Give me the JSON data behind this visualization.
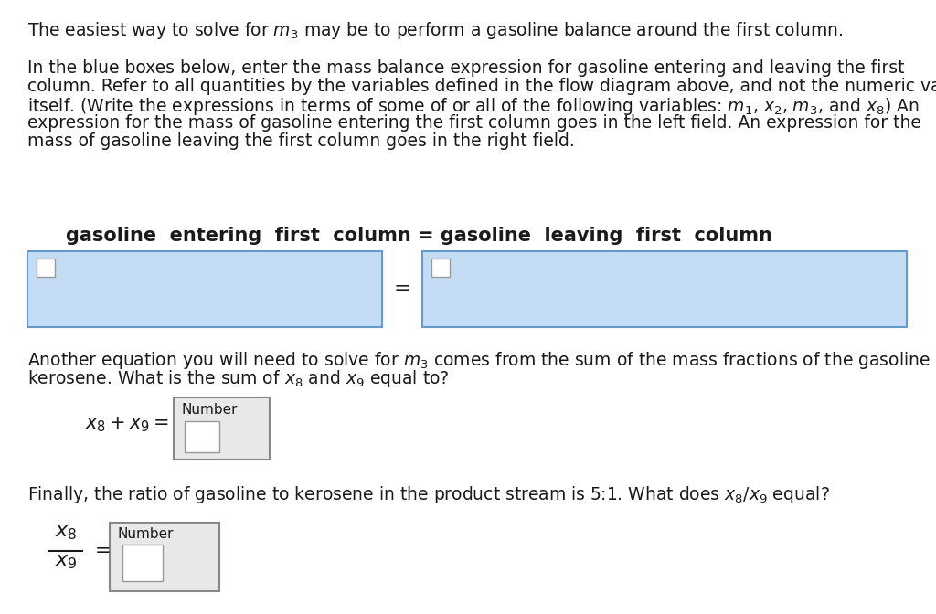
{
  "background_color": "#ffffff",
  "text_color": "#1a1a1a",
  "blue_box_color": "#c5ddf4",
  "blue_box_border": "#6699cc",
  "white_box_color": "#ffffff",
  "white_box_border": "#999999",
  "number_box_bg": "#e8e8e8",
  "number_box_border": "#888888",
  "para1": "The easiest way to solve for $m_3$ may be to perform a gasoline balance around the first column.",
  "para2_lines": [
    "In the blue boxes below, enter the mass balance expression for gasoline entering and leaving the first",
    "column. Refer to all quantities by the variables defined in the flow diagram above, and not the numeric value",
    "itself. (Write the expressions in terms of some of or all of the following variables: $m_1$, $x_2$, $m_3$, and $x_8$) An",
    "expression for the mass of gasoline entering the first column goes in the left field. An expression for the",
    "mass of gasoline leaving the first column goes in the right field."
  ],
  "eq_label": "gasoline  entering  first  column = gasoline  leaving  first  column",
  "para3_lines": [
    "Another equation you will need to solve for $m_3$ comes from the sum of the mass fractions of the gasoline and",
    "kerosene. What is the sum of $x_8$ and $x_9$ equal to?"
  ],
  "para4": "Finally, the ratio of gasoline to kerosene in the product stream is 5:1. What does $x_8$/$x_9$ equal?",
  "font_size": 13.5,
  "eq_font_size": 15,
  "math_font_size": 15,
  "number_label_size": 11
}
